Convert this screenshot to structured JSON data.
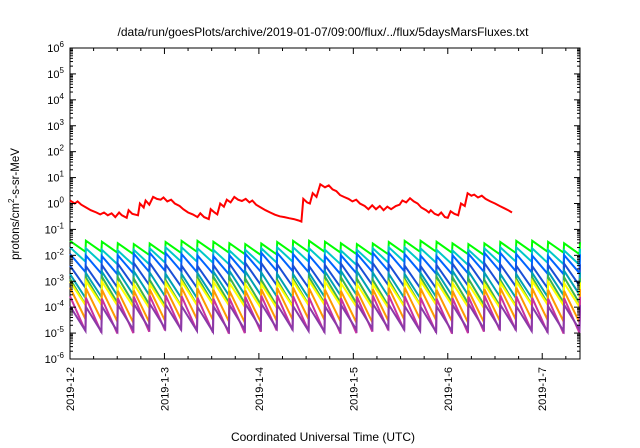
{
  "chart_data": {
    "type": "line",
    "title": "/data/run/goesPlots/archive/2019-01-07/09:00/flux/../flux/5daysMarsFluxes.txt",
    "xlabel": "Coordinated Universal Time (UTC)",
    "ylabel": {
      "prefix": "protons/cm",
      "sup": "2",
      "suffix": "-s-sr-MeV"
    },
    "yscale": "log",
    "ylim": [
      1e-06,
      1000000.0
    ],
    "xlim_days": [
      0,
      5.4
    ],
    "x_ticks": [
      {
        "label": "2019-1-2",
        "day": 0
      },
      {
        "label": "2019-1-3",
        "day": 1
      },
      {
        "label": "2019-1-4",
        "day": 2
      },
      {
        "label": "2019-1-5",
        "day": 3
      },
      {
        "label": "2019-1-6",
        "day": 4
      },
      {
        "label": "2019-1-7",
        "day": 5
      }
    ],
    "y_ticks": [
      {
        "base": "10",
        "exp": "6",
        "value": 1000000.0
      },
      {
        "base": "10",
        "exp": "5",
        "value": 100000.0
      },
      {
        "base": "10",
        "exp": "4",
        "value": 10000.0
      },
      {
        "base": "10",
        "exp": "3",
        "value": 1000.0
      },
      {
        "base": "10",
        "exp": "2",
        "value": 100.0
      },
      {
        "base": "10",
        "exp": "1",
        "value": 10.0
      },
      {
        "base": "10",
        "exp": "0",
        "value": 1
      },
      {
        "base": "10",
        "exp": "-1",
        "value": 0.1
      },
      {
        "base": "10",
        "exp": "-2",
        "value": 0.01
      },
      {
        "base": "10",
        "exp": "-3",
        "value": 0.001
      },
      {
        "base": "10",
        "exp": "-4",
        "value": 0.0001
      },
      {
        "base": "10",
        "exp": "-5",
        "value": 1e-05
      },
      {
        "base": "10",
        "exp": "-6",
        "value": 1e-06
      }
    ],
    "grid": false,
    "series": [
      {
        "color": "#ff0000",
        "points": [
          [
            0.0,
            1.3
          ],
          [
            0.05,
            1.0
          ],
          [
            0.08,
            1.2
          ],
          [
            0.12,
            0.9
          ],
          [
            0.17,
            0.7
          ],
          [
            0.22,
            0.55
          ],
          [
            0.28,
            0.45
          ],
          [
            0.32,
            0.38
          ],
          [
            0.36,
            0.45
          ],
          [
            0.4,
            0.35
          ],
          [
            0.44,
            0.42
          ],
          [
            0.48,
            0.3
          ],
          [
            0.52,
            0.45
          ],
          [
            0.55,
            0.35
          ],
          [
            0.6,
            0.28
          ],
          [
            0.62,
            0.55
          ],
          [
            0.66,
            0.4
          ],
          [
            0.72,
            0.35
          ],
          [
            0.74,
            1.0
          ],
          [
            0.78,
            0.7
          ],
          [
            0.8,
            1.3
          ],
          [
            0.84,
            0.9
          ],
          [
            0.88,
            1.8
          ],
          [
            0.92,
            1.5
          ],
          [
            0.96,
            1.4
          ],
          [
            0.99,
            1.7
          ],
          [
            1.03,
            1.2
          ],
          [
            1.07,
            1.4
          ],
          [
            1.11,
            1.0
          ],
          [
            1.16,
            0.8
          ],
          [
            1.2,
            0.6
          ],
          [
            1.25,
            0.45
          ],
          [
            1.3,
            0.38
          ],
          [
            1.35,
            0.3
          ],
          [
            1.38,
            0.42
          ],
          [
            1.42,
            0.3
          ],
          [
            1.47,
            0.25
          ],
          [
            1.49,
            0.6
          ],
          [
            1.53,
            0.45
          ],
          [
            1.56,
            0.38
          ],
          [
            1.59,
            1.0
          ],
          [
            1.63,
            0.75
          ],
          [
            1.66,
            1.4
          ],
          [
            1.7,
            1.1
          ],
          [
            1.74,
            1.8
          ],
          [
            1.78,
            1.4
          ],
          [
            1.82,
            1.25
          ],
          [
            1.86,
            1.5
          ],
          [
            1.9,
            1.1
          ],
          [
            1.93,
            1.3
          ],
          [
            1.97,
            0.9
          ],
          [
            2.02,
            0.7
          ],
          [
            2.07,
            0.55
          ],
          [
            2.12,
            0.45
          ],
          [
            2.17,
            0.37
          ],
          [
            2.22,
            0.32
          ],
          [
            2.27,
            0.3
          ],
          [
            2.32,
            0.27
          ],
          [
            2.37,
            0.25
          ],
          [
            2.42,
            0.22
          ],
          [
            2.45,
            0.2
          ],
          [
            2.47,
            1.5
          ],
          [
            2.51,
            1.1
          ],
          [
            2.54,
            1.0
          ],
          [
            2.57,
            2.5
          ],
          [
            2.61,
            1.8
          ],
          [
            2.65,
            5.5
          ],
          [
            2.7,
            4.2
          ],
          [
            2.74,
            5.0
          ],
          [
            2.78,
            3.5
          ],
          [
            2.82,
            3.0
          ],
          [
            2.86,
            2.1
          ],
          [
            2.9,
            1.8
          ],
          [
            2.95,
            1.5
          ],
          [
            2.99,
            1.2
          ],
          [
            3.03,
            1.4
          ],
          [
            3.07,
            1.0
          ],
          [
            3.12,
            0.8
          ],
          [
            3.16,
            0.6
          ],
          [
            3.2,
            0.85
          ],
          [
            3.24,
            0.6
          ],
          [
            3.28,
            0.8
          ],
          [
            3.32,
            0.55
          ],
          [
            3.36,
            0.75
          ],
          [
            3.4,
            0.6
          ],
          [
            3.45,
            0.8
          ],
          [
            3.49,
            0.9
          ],
          [
            3.52,
            1.3
          ],
          [
            3.56,
            1.1
          ],
          [
            3.6,
            1.6
          ],
          [
            3.64,
            1.2
          ],
          [
            3.68,
            1.0
          ],
          [
            3.72,
            0.7
          ],
          [
            3.77,
            0.55
          ],
          [
            3.8,
            0.45
          ],
          [
            3.82,
            0.55
          ],
          [
            3.86,
            0.4
          ],
          [
            3.9,
            0.35
          ],
          [
            3.93,
            0.45
          ],
          [
            3.97,
            0.3
          ],
          [
            4.0,
            0.28
          ],
          [
            4.03,
            0.5
          ],
          [
            4.07,
            0.4
          ],
          [
            4.11,
            0.35
          ],
          [
            4.14,
            1.0
          ],
          [
            4.18,
            0.8
          ],
          [
            4.21,
            2.5
          ],
          [
            4.25,
            2.0
          ],
          [
            4.28,
            2.2
          ],
          [
            4.32,
            1.7
          ],
          [
            4.36,
            2.0
          ],
          [
            4.4,
            1.5
          ],
          [
            4.45,
            1.2
          ],
          [
            4.5,
            1.0
          ],
          [
            4.55,
            0.8
          ],
          [
            4.6,
            0.65
          ],
          [
            4.64,
            0.55
          ],
          [
            4.68,
            0.45
          ]
        ]
      },
      {
        "color": "#00ff00",
        "base": 0.032,
        "drop": 0.38,
        "teeth": 32
      },
      {
        "color": "#00c8c8",
        "base": 0.018,
        "drop": 0.28,
        "teeth": 32
      },
      {
        "color": "#0064ff",
        "base": 0.011,
        "drop": 0.2,
        "teeth": 32
      },
      {
        "color": "#1a4fd6",
        "base": 0.0045,
        "drop": 0.14,
        "teeth": 32
      },
      {
        "color": "#00a0b4",
        "base": 0.0022,
        "drop": 0.12,
        "teeth": 32
      },
      {
        "color": "#3cb44b",
        "base": 0.0013,
        "drop": 0.1,
        "teeth": 32
      },
      {
        "color": "#ffff00",
        "base": 0.0009,
        "drop": 0.12,
        "teeth": 32
      },
      {
        "color": "#ff9900",
        "base": 0.0005,
        "drop": 0.06,
        "teeth": 32
      },
      {
        "color": "#c832a0",
        "base": 0.00025,
        "drop": 0.045,
        "teeth": 32
      },
      {
        "color": "#8a3aa8",
        "base": 0.00012,
        "drop": 0.11,
        "teeth": 32
      }
    ]
  }
}
